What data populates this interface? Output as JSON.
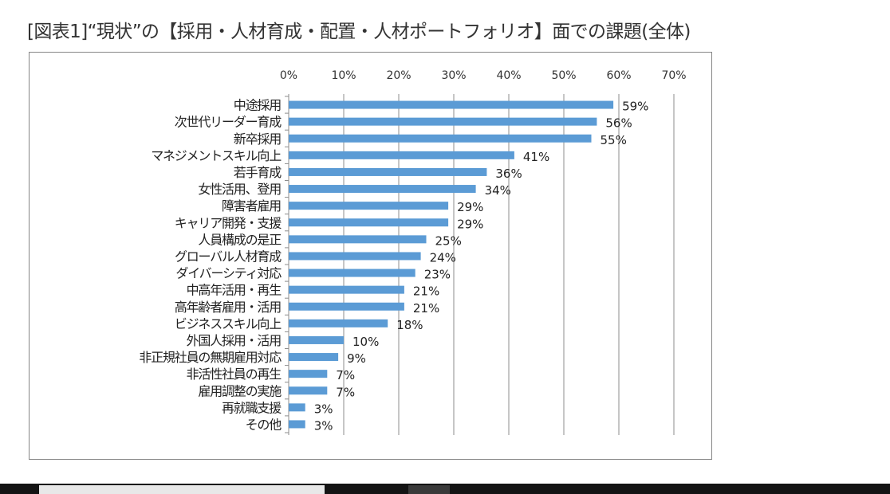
{
  "title": "[図表1]“現状”の【採用・人材育成・配置・人材ポートフォリオ】面での課題(全体)",
  "chart_data": {
    "type": "bar",
    "orientation": "horizontal",
    "categories": [
      "中途採用",
      "次世代リーダー育成",
      "新卒採用",
      "マネジメントスキル向上",
      "若手育成",
      "女性活用、登用",
      "障害者雇用",
      "キャリア開発・支援",
      "人員構成の是正",
      "グローバル人材育成",
      "ダイバーシティ対応",
      "中高年活用・再生",
      "高年齢者雇用・活用",
      "ビジネススキル向上",
      "外国人採用・活用",
      "非正規社員の無期雇用対応",
      "非活性社員の再生",
      "雇用調整の実施",
      "再就職支援",
      "その他"
    ],
    "values": [
      59,
      56,
      55,
      41,
      36,
      34,
      29,
      29,
      25,
      24,
      23,
      21,
      21,
      18,
      10,
      9,
      7,
      7,
      3,
      3
    ],
    "data_labels": [
      "59%",
      "56%",
      "55%",
      "41%",
      "36%",
      "34%",
      "29%",
      "29%",
      "25%",
      "24%",
      "23%",
      "21%",
      "21%",
      "18%",
      "10%",
      "9%",
      "7%",
      "7%",
      "3%",
      "3%"
    ],
    "xlim": [
      0,
      70
    ],
    "x_ticks": [
      0,
      10,
      20,
      30,
      40,
      50,
      60,
      70
    ],
    "x_tick_labels": [
      "0%",
      "10%",
      "20%",
      "30%",
      "40%",
      "50%",
      "60%",
      "70%"
    ],
    "x_axis_position": "top",
    "grid": true,
    "bar_color": "#5b9bd5",
    "xlabel": "",
    "ylabel": ""
  }
}
